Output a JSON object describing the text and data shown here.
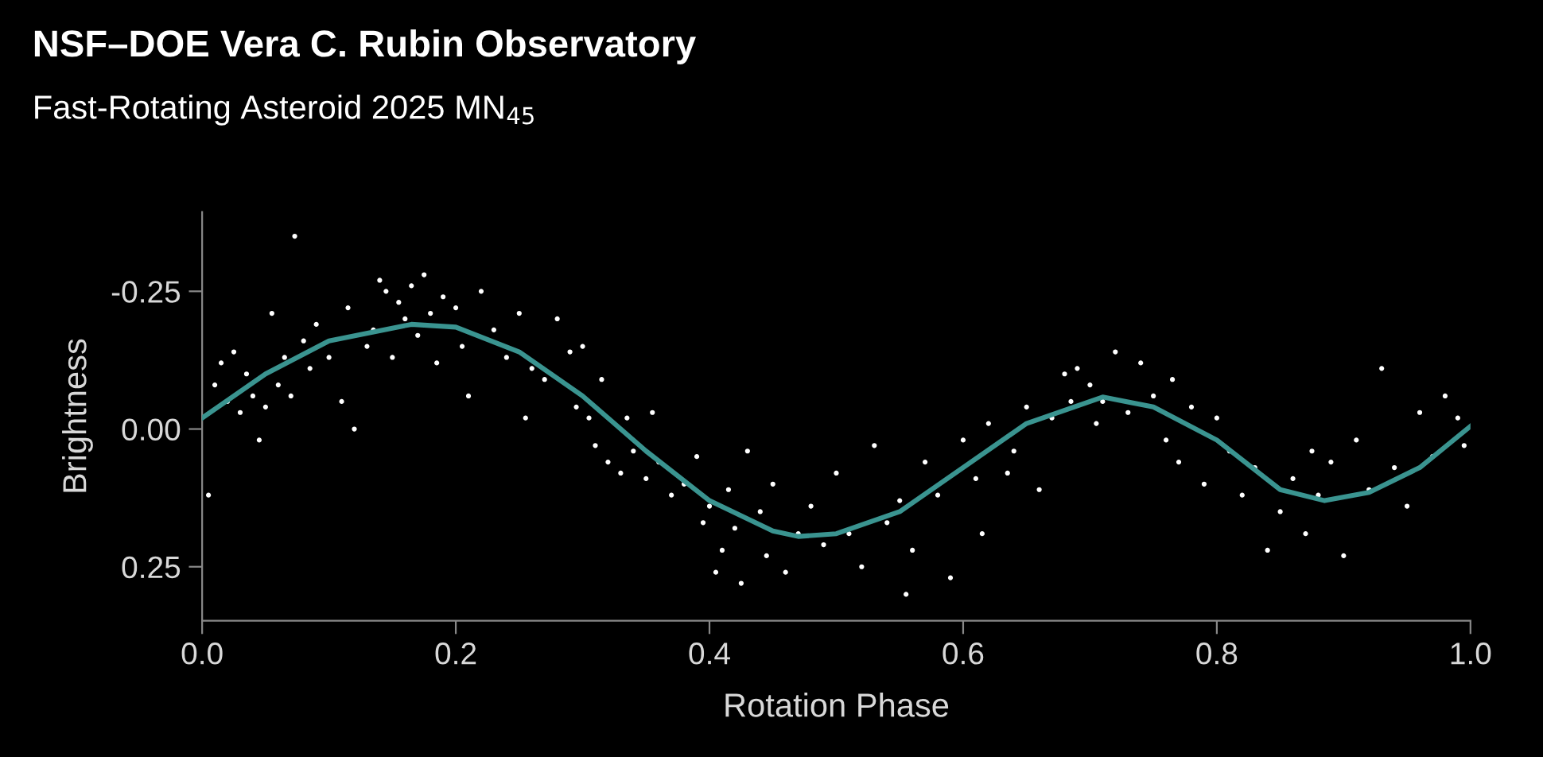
{
  "chart_data": {
    "type": "scatter",
    "title": "NSF–DOE Vera C. Rubin Observatory",
    "subtitle": "Fast-Rotating Asteroid 2025 MN$_{45}$",
    "xlabel": "Rotation Phase",
    "ylabel": "Brightness",
    "xlim": [
      0,
      1
    ],
    "ylim": [
      0.348,
      -0.394
    ],
    "xticks": [
      {
        "value": 0,
        "label": "0.0"
      },
      0.2,
      0.4,
      0.6,
      0.8,
      {
        "value": 1,
        "label": "1.0"
      }
    ],
    "yticks": [
      {
        "value": -0.25,
        "label": "-0.25"
      },
      {
        "value": 0,
        "label": "0.00"
      },
      0.25
    ],
    "grid": false,
    "legend": false,
    "marker": "circle",
    "series": [
      {
        "color": "#ffffff",
        "x": [
          0.005,
          0.01,
          0.015,
          0.02,
          0.025,
          0.03,
          0.035,
          0.04,
          0.045,
          0.05,
          0.055,
          0.06,
          0.065,
          0.07,
          0.073,
          0.08,
          0.085,
          0.09,
          0.1,
          0.11,
          0.115,
          0.12,
          0.13,
          0.135,
          0.14,
          0.145,
          0.15,
          0.155,
          0.16,
          0.165,
          0.17,
          0.175,
          0.18,
          0.185,
          0.19,
          0.2,
          0.205,
          0.21,
          0.22,
          0.23,
          0.24,
          0.25,
          0.255,
          0.26,
          0.27,
          0.28,
          0.29,
          0.295,
          0.3,
          0.305,
          0.31,
          0.315,
          0.32,
          0.33,
          0.335,
          0.34,
          0.35,
          0.355,
          0.36,
          0.37,
          0.38,
          0.39,
          0.395,
          0.4,
          0.405,
          0.41,
          0.415,
          0.42,
          0.425,
          0.43,
          0.44,
          0.445,
          0.45,
          0.46,
          0.47,
          0.48,
          0.49,
          0.5,
          0.51,
          0.52,
          0.53,
          0.54,
          0.55,
          0.555,
          0.56,
          0.57,
          0.58,
          0.59,
          0.6,
          0.61,
          0.615,
          0.62,
          0.635,
          0.64,
          0.65,
          0.66,
          0.67,
          0.68,
          0.685,
          0.69,
          0.7,
          0.705,
          0.71,
          0.72,
          0.73,
          0.74,
          0.75,
          0.76,
          0.765,
          0.77,
          0.78,
          0.79,
          0.8,
          0.81,
          0.82,
          0.83,
          0.84,
          0.85,
          0.86,
          0.87,
          0.875,
          0.88,
          0.89,
          0.9,
          0.91,
          0.92,
          0.93,
          0.94,
          0.95,
          0.96,
          0.97,
          0.98,
          0.99,
          0.995
        ],
        "values": [
          0.12,
          -0.08,
          -0.12,
          -0.05,
          -0.14,
          -0.03,
          -0.1,
          -0.06,
          0.02,
          -0.04,
          -0.21,
          -0.08,
          -0.13,
          -0.06,
          -0.35,
          -0.16,
          -0.11,
          -0.19,
          -0.13,
          -0.05,
          -0.22,
          0.0,
          -0.15,
          -0.18,
          -0.27,
          -0.25,
          -0.13,
          -0.23,
          -0.2,
          -0.26,
          -0.17,
          -0.28,
          -0.21,
          -0.12,
          -0.24,
          -0.22,
          -0.15,
          -0.06,
          -0.25,
          -0.18,
          -0.13,
          -0.21,
          -0.02,
          -0.11,
          -0.09,
          -0.2,
          -0.14,
          -0.04,
          -0.15,
          -0.02,
          0.03,
          -0.09,
          0.06,
          0.08,
          -0.02,
          0.04,
          0.09,
          -0.03,
          0.06,
          0.12,
          0.1,
          0.05,
          0.17,
          0.14,
          0.26,
          0.22,
          0.11,
          0.18,
          0.28,
          0.04,
          0.15,
          0.23,
          0.1,
          0.26,
          0.19,
          0.14,
          0.21,
          0.08,
          0.19,
          0.25,
          0.03,
          0.17,
          0.13,
          0.3,
          0.22,
          0.06,
          0.12,
          0.27,
          0.02,
          0.09,
          0.19,
          -0.01,
          0.08,
          0.04,
          -0.04,
          0.11,
          -0.02,
          -0.1,
          -0.05,
          -0.11,
          -0.08,
          -0.01,
          -0.05,
          -0.14,
          -0.03,
          -0.12,
          -0.06,
          0.02,
          -0.09,
          0.06,
          -0.04,
          0.1,
          -0.02,
          0.04,
          0.12,
          0.07,
          0.22,
          0.15,
          0.09,
          0.19,
          0.04,
          0.12,
          0.06,
          0.23,
          0.02,
          0.11,
          -0.11,
          0.07,
          0.14,
          -0.03,
          0.05,
          -0.06,
          -0.02,
          0.03
        ]
      },
      {
        "type": "line",
        "color": "#3a9490",
        "marker": "none",
        "x": [
          0.0,
          0.05,
          0.1,
          0.165,
          0.2,
          0.25,
          0.3,
          0.35,
          0.4,
          0.45,
          0.47,
          0.5,
          0.55,
          0.6,
          0.65,
          0.71,
          0.75,
          0.8,
          0.85,
          0.885,
          0.92,
          0.96,
          1.0
        ],
        "values": [
          -0.02,
          -0.1,
          -0.16,
          -0.19,
          -0.185,
          -0.14,
          -0.06,
          0.04,
          0.13,
          0.185,
          0.195,
          0.19,
          0.15,
          0.07,
          -0.01,
          -0.058,
          -0.04,
          0.02,
          0.11,
          0.13,
          0.115,
          0.07,
          -0.005
        ]
      }
    ]
  }
}
